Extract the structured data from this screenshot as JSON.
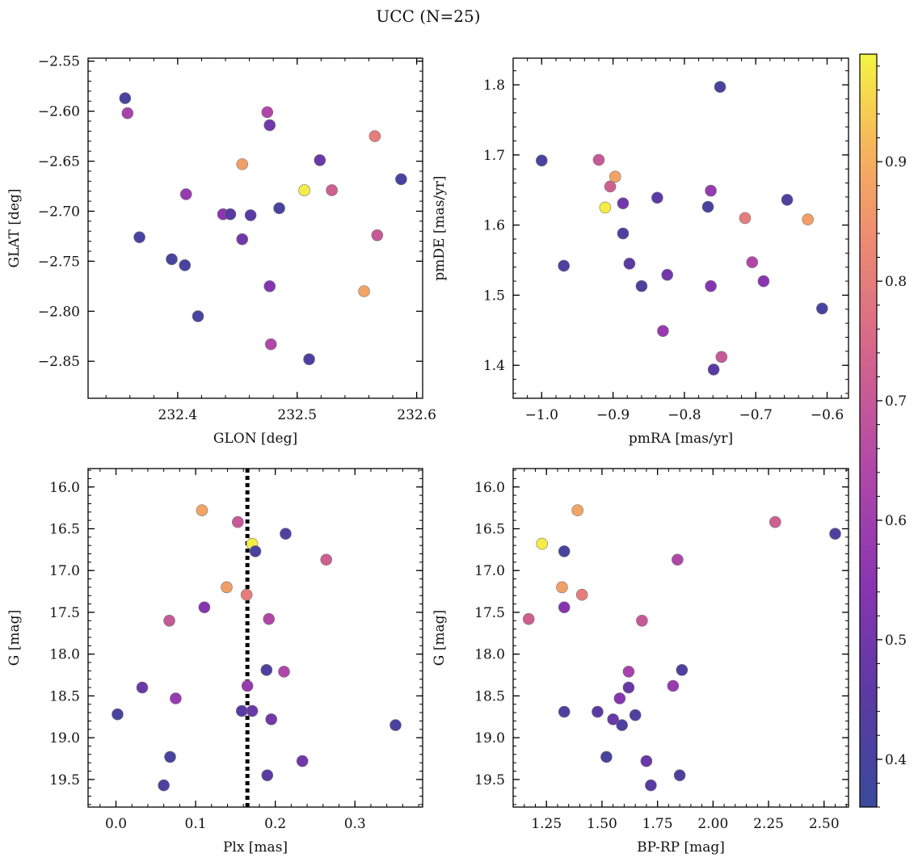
{
  "figure": {
    "title": "UCC (N=25)"
  },
  "colorbar": {
    "min": 0.36,
    "max": 0.99,
    "ticks": [
      0.4,
      0.5,
      0.6,
      0.7,
      0.8,
      0.9
    ],
    "tick_labels": [
      "0.4",
      "0.5",
      "0.6",
      "0.7",
      "0.8",
      "0.9"
    ],
    "colormap": "plasma"
  },
  "chart_data": [
    {
      "type": "scatter",
      "xlabel": "GLON [deg]",
      "ylabel": "GLAT [deg]",
      "xlim": [
        232.325,
        232.605
      ],
      "ylim": [
        -2.887,
        -2.547
      ],
      "xticks": [
        232.4,
        232.5,
        232.6
      ],
      "xtick_labels": [
        "232.4",
        "232.5",
        "232.6"
      ],
      "yticks": [
        -2.55,
        -2.6,
        -2.65,
        -2.7,
        -2.75,
        -2.8,
        -2.85
      ],
      "ytick_labels": [
        "−2.55",
        "−2.60",
        "−2.65",
        "−2.70",
        "−2.75",
        "−2.80",
        "−2.85"
      ],
      "points": [
        {
          "x": 232.356,
          "y": -2.587,
          "c": 0.4
        },
        {
          "x": 232.358,
          "y": -2.602,
          "c": 0.62
        },
        {
          "x": 232.368,
          "y": -2.726,
          "c": 0.4
        },
        {
          "x": 232.395,
          "y": -2.748,
          "c": 0.4
        },
        {
          "x": 232.406,
          "y": -2.754,
          "c": 0.4
        },
        {
          "x": 232.407,
          "y": -2.683,
          "c": 0.58
        },
        {
          "x": 232.417,
          "y": -2.805,
          "c": 0.4
        },
        {
          "x": 232.438,
          "y": -2.703,
          "c": 0.55
        },
        {
          "x": 232.444,
          "y": -2.703,
          "c": 0.45
        },
        {
          "x": 232.454,
          "y": -2.653,
          "c": 0.87
        },
        {
          "x": 232.454,
          "y": -2.728,
          "c": 0.5
        },
        {
          "x": 232.461,
          "y": -2.704,
          "c": 0.45
        },
        {
          "x": 232.475,
          "y": -2.601,
          "c": 0.64
        },
        {
          "x": 232.477,
          "y": -2.614,
          "c": 0.5
        },
        {
          "x": 232.477,
          "y": -2.775,
          "c": 0.54
        },
        {
          "x": 232.478,
          "y": -2.833,
          "c": 0.64
        },
        {
          "x": 232.485,
          "y": -2.697,
          "c": 0.4
        },
        {
          "x": 232.506,
          "y": -2.679,
          "c": 0.98
        },
        {
          "x": 232.51,
          "y": -2.848,
          "c": 0.42
        },
        {
          "x": 232.519,
          "y": -2.649,
          "c": 0.48
        },
        {
          "x": 232.529,
          "y": -2.679,
          "c": 0.72
        },
        {
          "x": 232.556,
          "y": -2.78,
          "c": 0.88
        },
        {
          "x": 232.565,
          "y": -2.625,
          "c": 0.8
        },
        {
          "x": 232.567,
          "y": -2.724,
          "c": 0.7
        },
        {
          "x": 232.587,
          "y": -2.668,
          "c": 0.4
        }
      ]
    },
    {
      "type": "scatter",
      "xlabel": "pmRA [mas/yr]",
      "ylabel": "pmDE [mas/yr]",
      "xlim": [
        -1.04,
        -0.57
      ],
      "ylim": [
        1.353,
        1.838
      ],
      "xticks": [
        -1.0,
        -0.9,
        -0.8,
        -0.7,
        -0.6
      ],
      "xtick_labels": [
        "−1.0",
        "−0.9",
        "−0.8",
        "−0.7",
        "−0.6"
      ],
      "yticks": [
        1.4,
        1.5,
        1.6,
        1.7,
        1.8
      ],
      "ytick_labels": [
        "1.4",
        "1.5",
        "1.6",
        "1.7",
        "1.8"
      ],
      "points": [
        {
          "x": -1.0,
          "y": 1.692,
          "c": 0.4
        },
        {
          "x": -0.969,
          "y": 1.542,
          "c": 0.42
        },
        {
          "x": -0.92,
          "y": 1.693,
          "c": 0.7
        },
        {
          "x": -0.911,
          "y": 1.625,
          "c": 0.98
        },
        {
          "x": -0.904,
          "y": 1.655,
          "c": 0.72
        },
        {
          "x": -0.897,
          "y": 1.669,
          "c": 0.88
        },
        {
          "x": -0.886,
          "y": 1.631,
          "c": 0.5
        },
        {
          "x": -0.886,
          "y": 1.588,
          "c": 0.42
        },
        {
          "x": -0.877,
          "y": 1.545,
          "c": 0.45
        },
        {
          "x": -0.86,
          "y": 1.513,
          "c": 0.42
        },
        {
          "x": -0.838,
          "y": 1.639,
          "c": 0.45
        },
        {
          "x": -0.83,
          "y": 1.449,
          "c": 0.58
        },
        {
          "x": -0.824,
          "y": 1.529,
          "c": 0.5
        },
        {
          "x": -0.767,
          "y": 1.626,
          "c": 0.4
        },
        {
          "x": -0.763,
          "y": 1.649,
          "c": 0.58
        },
        {
          "x": -0.763,
          "y": 1.513,
          "c": 0.54
        },
        {
          "x": -0.759,
          "y": 1.394,
          "c": 0.45
        },
        {
          "x": -0.75,
          "y": 1.797,
          "c": 0.4
        },
        {
          "x": -0.748,
          "y": 1.412,
          "c": 0.7
        },
        {
          "x": -0.715,
          "y": 1.61,
          "c": 0.8
        },
        {
          "x": -0.705,
          "y": 1.547,
          "c": 0.64
        },
        {
          "x": -0.689,
          "y": 1.52,
          "c": 0.55
        },
        {
          "x": -0.656,
          "y": 1.636,
          "c": 0.42
        },
        {
          "x": -0.627,
          "y": 1.608,
          "c": 0.87
        },
        {
          "x": -0.607,
          "y": 1.481,
          "c": 0.4
        }
      ]
    },
    {
      "type": "scatter",
      "xlabel": "Plx [mas]",
      "ylabel": "G [mag]",
      "xlim": [
        -0.035,
        0.385
      ],
      "ylim": [
        19.83,
        15.78
      ],
      "xticks": [
        0.0,
        0.1,
        0.2,
        0.3
      ],
      "xtick_labels": [
        "0.0",
        "0.1",
        "0.2",
        "0.3"
      ],
      "yticks": [
        16.0,
        16.5,
        17.0,
        17.5,
        18.0,
        18.5,
        19.0,
        19.5
      ],
      "ytick_labels": [
        "16.0",
        "16.5",
        "17.0",
        "17.5",
        "18.0",
        "18.5",
        "19.0",
        "19.5"
      ],
      "vline": 0.165,
      "points": [
        {
          "x": 0.002,
          "y": 18.72,
          "c": 0.4
        },
        {
          "x": 0.033,
          "y": 18.4,
          "c": 0.48
        },
        {
          "x": 0.06,
          "y": 19.57,
          "c": 0.42
        },
        {
          "x": 0.067,
          "y": 17.6,
          "c": 0.7
        },
        {
          "x": 0.068,
          "y": 19.23,
          "c": 0.4
        },
        {
          "x": 0.075,
          "y": 18.53,
          "c": 0.58
        },
        {
          "x": 0.108,
          "y": 16.28,
          "c": 0.88
        },
        {
          "x": 0.111,
          "y": 17.44,
          "c": 0.54
        },
        {
          "x": 0.139,
          "y": 17.2,
          "c": 0.87
        },
        {
          "x": 0.153,
          "y": 16.42,
          "c": 0.7
        },
        {
          "x": 0.158,
          "y": 18.68,
          "c": 0.45
        },
        {
          "x": 0.164,
          "y": 17.29,
          "c": 0.8
        },
        {
          "x": 0.165,
          "y": 18.38,
          "c": 0.58
        },
        {
          "x": 0.171,
          "y": 16.68,
          "c": 0.98
        },
        {
          "x": 0.171,
          "y": 18.68,
          "c": 0.48
        },
        {
          "x": 0.175,
          "y": 16.77,
          "c": 0.4
        },
        {
          "x": 0.189,
          "y": 18.19,
          "c": 0.42
        },
        {
          "x": 0.19,
          "y": 19.45,
          "c": 0.45
        },
        {
          "x": 0.192,
          "y": 17.58,
          "c": 0.64
        },
        {
          "x": 0.195,
          "y": 18.78,
          "c": 0.5
        },
        {
          "x": 0.211,
          "y": 18.21,
          "c": 0.64
        },
        {
          "x": 0.213,
          "y": 16.56,
          "c": 0.42
        },
        {
          "x": 0.234,
          "y": 19.28,
          "c": 0.5
        },
        {
          "x": 0.264,
          "y": 16.87,
          "c": 0.72
        },
        {
          "x": 0.351,
          "y": 18.85,
          "c": 0.4
        }
      ]
    },
    {
      "type": "scatter",
      "xlabel": "BP-RP [mag]",
      "ylabel": "G [mag]",
      "xlim": [
        1.1,
        2.61
      ],
      "ylim": [
        19.83,
        15.78
      ],
      "xticks": [
        1.25,
        1.5,
        1.75,
        2.0,
        2.25,
        2.5
      ],
      "xtick_labels": [
        "1.25",
        "1.50",
        "1.75",
        "2.00",
        "2.25",
        "2.50"
      ],
      "yticks": [
        16.0,
        16.5,
        17.0,
        17.5,
        18.0,
        18.5,
        19.0,
        19.5
      ],
      "ytick_labels": [
        "16.0",
        "16.5",
        "17.0",
        "17.5",
        "18.0",
        "18.5",
        "19.0",
        "19.5"
      ],
      "points": [
        {
          "x": 1.17,
          "y": 17.58,
          "c": 0.72
        },
        {
          "x": 1.23,
          "y": 16.68,
          "c": 0.98
        },
        {
          "x": 1.32,
          "y": 17.2,
          "c": 0.87
        },
        {
          "x": 1.33,
          "y": 16.77,
          "c": 0.4
        },
        {
          "x": 1.33,
          "y": 17.44,
          "c": 0.54
        },
        {
          "x": 1.33,
          "y": 18.69,
          "c": 0.42
        },
        {
          "x": 1.39,
          "y": 16.28,
          "c": 0.88
        },
        {
          "x": 1.41,
          "y": 17.29,
          "c": 0.8
        },
        {
          "x": 1.48,
          "y": 18.69,
          "c": 0.45
        },
        {
          "x": 1.52,
          "y": 19.23,
          "c": 0.4
        },
        {
          "x": 1.55,
          "y": 18.78,
          "c": 0.48
        },
        {
          "x": 1.58,
          "y": 18.53,
          "c": 0.54
        },
        {
          "x": 1.59,
          "y": 18.85,
          "c": 0.42
        },
        {
          "x": 1.62,
          "y": 18.21,
          "c": 0.62
        },
        {
          "x": 1.62,
          "y": 18.4,
          "c": 0.48
        },
        {
          "x": 1.65,
          "y": 18.73,
          "c": 0.42
        },
        {
          "x": 1.68,
          "y": 17.6,
          "c": 0.7
        },
        {
          "x": 1.7,
          "y": 19.28,
          "c": 0.48
        },
        {
          "x": 1.72,
          "y": 19.57,
          "c": 0.45
        },
        {
          "x": 1.82,
          "y": 18.38,
          "c": 0.58
        },
        {
          "x": 1.84,
          "y": 16.87,
          "c": 0.64
        },
        {
          "x": 1.85,
          "y": 19.45,
          "c": 0.42
        },
        {
          "x": 1.86,
          "y": 18.19,
          "c": 0.42
        },
        {
          "x": 2.28,
          "y": 16.42,
          "c": 0.72
        },
        {
          "x": 2.55,
          "y": 16.56,
          "c": 0.42
        }
      ]
    }
  ]
}
